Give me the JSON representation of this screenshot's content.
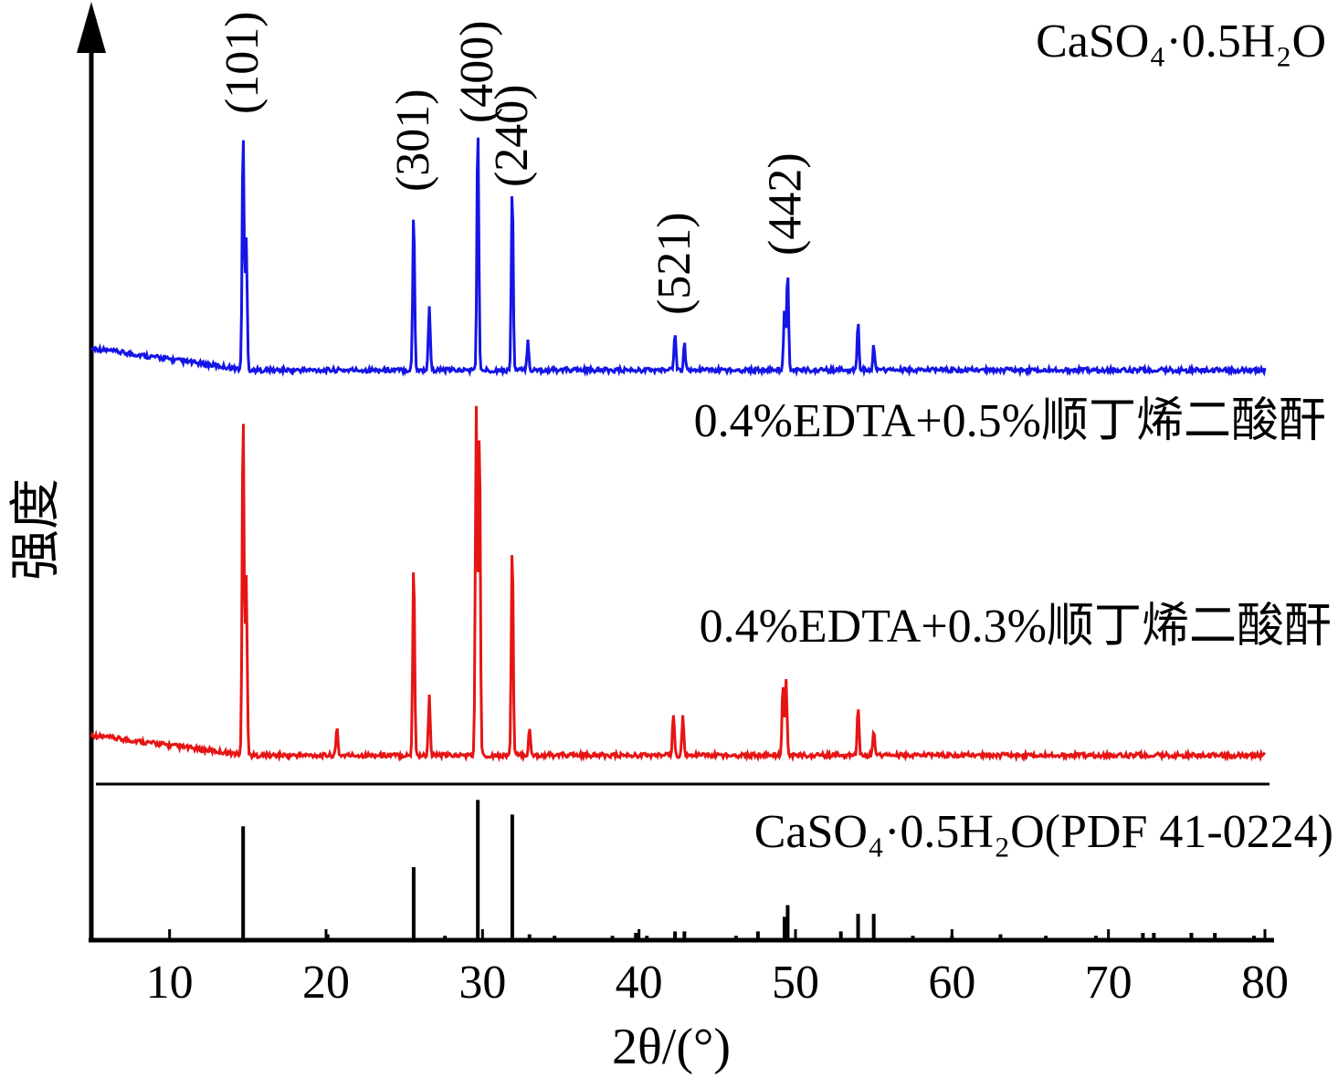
{
  "chart_data": {
    "type": "line",
    "xlabel": "2θ/(°)",
    "ylabel": "强度",
    "xlim": [
      5,
      80
    ],
    "x_ticks": [
      10,
      20,
      30,
      40,
      50,
      60,
      70,
      80
    ],
    "series": [
      {
        "name": "CaSO₄·0.5H₂O",
        "color": "#1515e6",
        "peaks": [
          [
            14.7,
            0.88
          ],
          [
            14.9,
            0.48
          ],
          [
            25.6,
            0.58
          ],
          [
            26.6,
            0.24
          ],
          [
            29.7,
            0.9
          ],
          [
            31.9,
            0.67
          ],
          [
            32.9,
            0.11
          ],
          [
            42.3,
            0.14
          ],
          [
            42.9,
            0.1
          ],
          [
            49.3,
            0.23
          ],
          [
            49.5,
            0.36
          ],
          [
            54.0,
            0.17
          ],
          [
            55.0,
            0.09
          ]
        ],
        "hkl_labels": [
          {
            "text": "(101)",
            "x": 14.7
          },
          {
            "text": "(301)",
            "x": 25.6
          },
          {
            "text": "(400)",
            "x": 29.7
          },
          {
            "text": "(240)",
            "x": 31.9
          },
          {
            "text": "(521)",
            "x": 42.3
          },
          {
            "text": "(442)",
            "x": 49.4
          }
        ]
      },
      {
        "name": "0.4%EDTA+0.5%顺丁烯二酸酐",
        "color": "#e61515",
        "peaks": [
          [
            14.7,
            1.0
          ],
          [
            14.9,
            0.52
          ],
          [
            20.7,
            0.08
          ],
          [
            25.6,
            0.56
          ],
          [
            26.6,
            0.17
          ],
          [
            29.6,
            1.0
          ],
          [
            29.8,
            0.95
          ],
          [
            31.9,
            0.61
          ],
          [
            33.0,
            0.08
          ],
          [
            42.2,
            0.12
          ],
          [
            42.8,
            0.11
          ],
          [
            49.2,
            0.2
          ],
          [
            49.4,
            0.22
          ],
          [
            54.0,
            0.14
          ],
          [
            55.0,
            0.07
          ]
        ]
      },
      {
        "name": "0.4%EDTA+0.3%顺丁烯二酸酐",
        "color": "#e61515",
        "peaks": []
      },
      {
        "name": "CaSO₄·0.5H₂O(PDF 41-0224)",
        "color": "#000000",
        "sticks": [
          [
            14.7,
            0.78
          ],
          [
            25.6,
            0.5
          ],
          [
            29.7,
            0.96
          ],
          [
            31.9,
            0.86
          ],
          [
            20.1,
            0.04
          ],
          [
            27.6,
            0.03
          ],
          [
            33.0,
            0.04
          ],
          [
            34.6,
            0.03
          ],
          [
            38.3,
            0.03
          ],
          [
            39.8,
            0.05
          ],
          [
            40.5,
            0.03
          ],
          [
            42.3,
            0.06
          ],
          [
            42.9,
            0.06
          ],
          [
            46.2,
            0.03
          ],
          [
            47.6,
            0.06
          ],
          [
            49.3,
            0.16
          ],
          [
            49.5,
            0.24
          ],
          [
            52.9,
            0.06
          ],
          [
            54.0,
            0.18
          ],
          [
            55.0,
            0.18
          ],
          [
            57.5,
            0.03
          ],
          [
            60.0,
            0.03
          ],
          [
            63.1,
            0.04
          ],
          [
            66.0,
            0.03
          ],
          [
            69.2,
            0.03
          ],
          [
            72.2,
            0.05
          ],
          [
            72.9,
            0.05
          ],
          [
            75.3,
            0.05
          ],
          [
            76.8,
            0.05
          ],
          [
            79.3,
            0.03
          ]
        ]
      }
    ],
    "grid": false,
    "legend": "labels placed beside each trace"
  }
}
